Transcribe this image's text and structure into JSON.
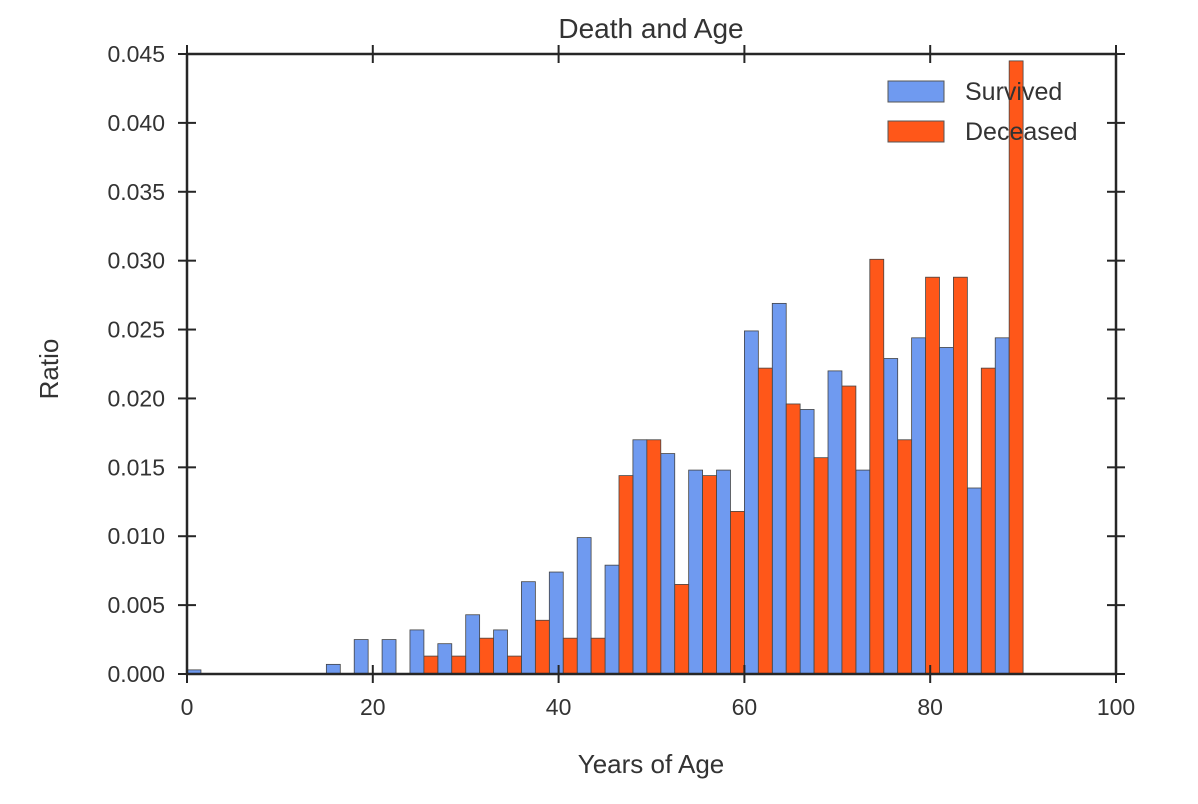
{
  "chart_data": {
    "type": "bar",
    "title": "Death and Age",
    "xlabel": "Years of Age",
    "ylabel": "Ratio",
    "xlim": [
      0,
      100
    ],
    "ylim": [
      0,
      0.045
    ],
    "xticks": [
      0,
      20,
      40,
      60,
      80,
      100
    ],
    "xtick_labels": [
      "0",
      "20",
      "40",
      "60",
      "80",
      "100"
    ],
    "yticks": [
      0,
      0.005,
      0.01,
      0.015,
      0.02,
      0.025,
      0.03,
      0.035,
      0.04,
      0.045
    ],
    "ytick_labels": [
      "0.000",
      "0.005",
      "0.010",
      "0.015",
      "0.020",
      "0.025",
      "0.030",
      "0.035",
      "0.040",
      "0.045"
    ],
    "grid": false,
    "legend_position": "top-right",
    "bin_start": 0,
    "bin_width": 3,
    "series": [
      {
        "name": "Survived",
        "color": "#6f9af0",
        "values": [
          0.0003,
          0,
          0,
          0,
          0,
          0.0007,
          0.0025,
          0.0025,
          0.0032,
          0.0022,
          0.0043,
          0.0032,
          0.0067,
          0.0074,
          0.0099,
          0.0079,
          0.017,
          0.016,
          0.0148,
          0.0148,
          0.0249,
          0.0269,
          0.0192,
          0.022,
          0.0148,
          0.0229,
          0.0244,
          0.0237,
          0.0135,
          0.0244,
          0
        ]
      },
      {
        "name": "Deceased",
        "color": "#ff5719",
        "values": [
          0,
          0,
          0,
          0,
          0,
          0,
          0,
          0,
          0.0013,
          0.0013,
          0.0026,
          0.0013,
          0.0039,
          0.0026,
          0.0026,
          0.0144,
          0.017,
          0.0065,
          0.0144,
          0.0118,
          0.0222,
          0.0196,
          0.0157,
          0.0209,
          0.0301,
          0.017,
          0.0288,
          0.0288,
          0.0222,
          0.0445,
          0
        ]
      }
    ]
  }
}
